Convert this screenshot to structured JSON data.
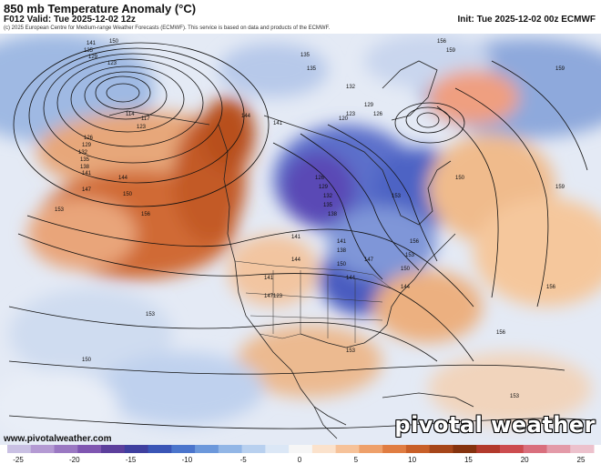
{
  "header": {
    "title": "850 mb Temperature Anomaly (°C)",
    "valid": "F012 Valid: Tue 2025-12-02 12z",
    "init": "Init: Tue 2025-12-02 00z ECMWF",
    "credit": "(c) 2025 European Centre for Medium-range Weather Forecasts (ECMWF). This service is based on data and products of the ECMWF."
  },
  "footer": {
    "website": "www.pivotalweather.com",
    "brand": "pivotal weather"
  },
  "map": {
    "height_labels": [
      "150",
      "141",
      "135",
      "129",
      "123",
      "114",
      "117",
      "123",
      "126",
      "129",
      "132",
      "135",
      "138",
      "141",
      "144",
      "147",
      "150",
      "153",
      "156",
      "144",
      "141",
      "135",
      "132",
      "129",
      "126",
      "123",
      "120",
      "135",
      "141",
      "144",
      "150",
      "153",
      "156",
      "159",
      "156",
      "153",
      "150",
      "147",
      "144",
      "141",
      "138",
      "135",
      "132",
      "129",
      "126",
      "123",
      "153",
      "150",
      "153",
      "156",
      "159",
      "150",
      "153",
      "156",
      "159",
      "138",
      "144",
      "141",
      "147"
    ]
  },
  "colorbar": {
    "colors": [
      "#c9c0e3",
      "#b49ad3",
      "#9a78c2",
      "#7f56b1",
      "#5c3f9c",
      "#3f3f9f",
      "#3a55b6",
      "#4b75cc",
      "#6c98db",
      "#92b6e6",
      "#b8d0ef",
      "#dbe7f6",
      "#f6f6f6",
      "#fbe2cc",
      "#f6c299",
      "#eea06a",
      "#e07d42",
      "#c85f28",
      "#a6461a",
      "#85330f",
      "#b23a2c",
      "#cc4c4f",
      "#d96f7d",
      "#e39aa8",
      "#ecc1cc"
    ],
    "ticks": [
      "-25",
      "-20",
      "-15",
      "-10",
      "-5",
      "0",
      "5",
      "10",
      "15",
      "20",
      "25"
    ]
  }
}
